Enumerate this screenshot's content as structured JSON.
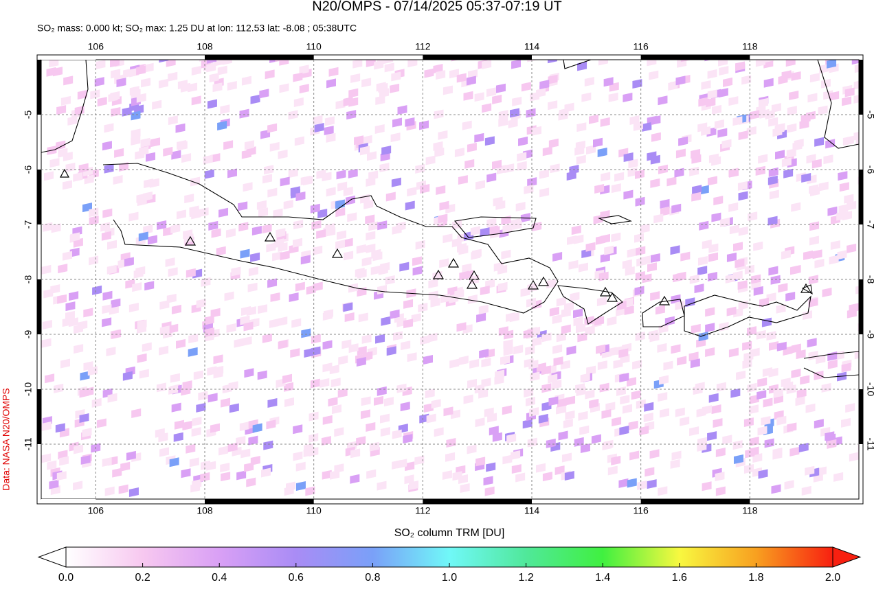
{
  "chart_data": {
    "type": "map",
    "title": "N20/OMPS - 07/14/2025 05:37-07:19 UT",
    "subtitle": "SO₂ mass: 0.000 kt; SO₂ max: 1.25 DU at lon: 112.53 lat: -8.08 ; 05:38UTC",
    "credit": "Data: NASA N20/OMPS",
    "xlim": [
      105,
      120
    ],
    "ylim": [
      -4,
      -12
    ],
    "xticks": [
      106,
      108,
      110,
      112,
      114,
      116,
      118
    ],
    "yticks": [
      -5,
      -6,
      -7,
      -8,
      -9,
      -10,
      -11
    ],
    "colorbar": {
      "label": "SO₂ column TRM [DU]",
      "lim": [
        0,
        2
      ],
      "ticks": [
        {
          "value": 0,
          "label": "0.0"
        },
        0.2,
        0.4,
        0.6,
        0.8,
        {
          "value": 1,
          "label": "1.0"
        },
        1.2,
        1.4,
        1.6,
        1.8,
        {
          "value": 2,
          "label": "2.0"
        }
      ],
      "colors": [
        "#ffffff",
        "#f7c8f0",
        "#d9a0f5",
        "#a98cf5",
        "#7aa0f8",
        "#70f8f8",
        "#50e89a",
        "#40f040",
        "#f8f840",
        "#f8a020",
        "#f82010"
      ]
    }
  }
}
